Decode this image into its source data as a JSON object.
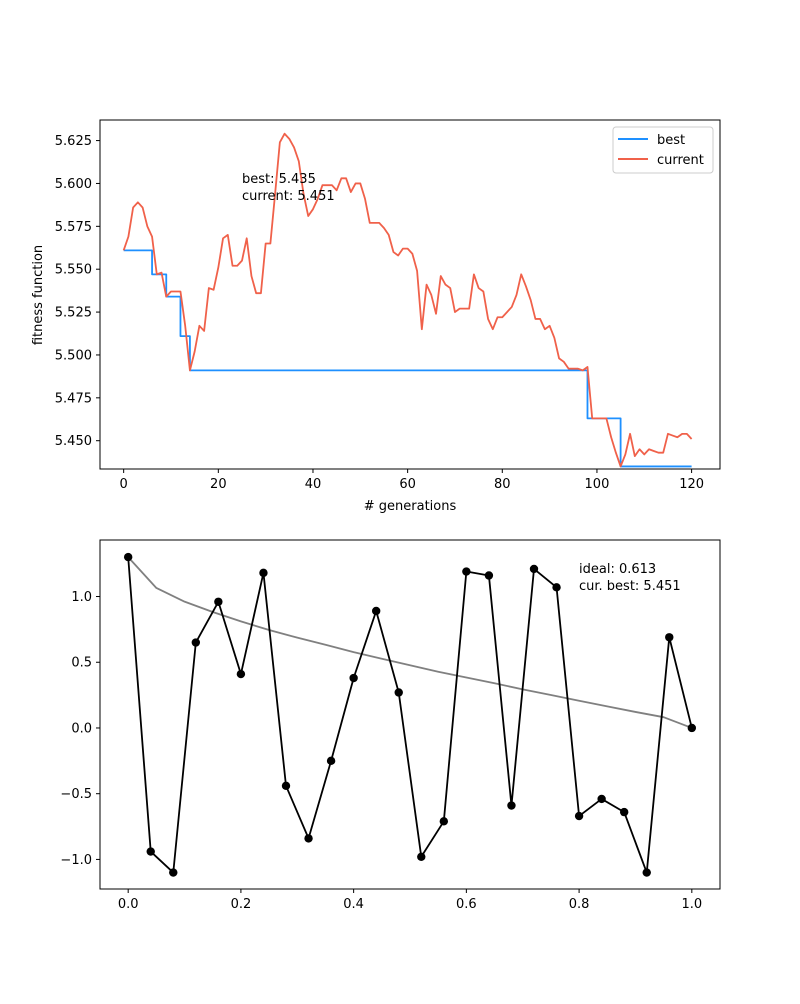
{
  "chart_data": [
    {
      "type": "line",
      "title": "",
      "xlabel": "# generations",
      "ylabel": "fitness function",
      "xlim": [
        -5,
        126
      ],
      "ylim": [
        5.4335,
        5.637
      ],
      "xticks": [
        0,
        20,
        40,
        60,
        80,
        100,
        120
      ],
      "xtick_labels": [
        "0",
        "20",
        "40",
        "60",
        "80",
        "100",
        "120"
      ],
      "yticks": [
        5.45,
        5.475,
        5.5,
        5.525,
        5.55,
        5.575,
        5.6,
        5.625
      ],
      "ytick_labels": [
        "5.450",
        "5.475",
        "5.500",
        "5.525",
        "5.550",
        "5.575",
        "5.600",
        "5.625"
      ],
      "legend_position": "top-right",
      "grid": false,
      "annotation": [
        "best: 5.435",
        "current: 5.451"
      ],
      "series": [
        {
          "name": "best",
          "color": "#1e90ff",
          "x": [
            0,
            6,
            6,
            9,
            9,
            12,
            12,
            14,
            14,
            98,
            98,
            105,
            105,
            120
          ],
          "values": [
            5.561,
            5.561,
            5.547,
            5.547,
            5.534,
            5.534,
            5.511,
            5.511,
            5.491,
            5.491,
            5.463,
            5.463,
            5.435,
            5.435
          ]
        },
        {
          "name": "current",
          "color": "#f0614a",
          "x": [
            0,
            1,
            2,
            3,
            4,
            5,
            6,
            7,
            8,
            9,
            10,
            11,
            12,
            13,
            14,
            15,
            16,
            17,
            18,
            19,
            20,
            21,
            22,
            23,
            24,
            25,
            26,
            27,
            28,
            29,
            30,
            31,
            32,
            33,
            34,
            35,
            36,
            37,
            38,
            39,
            40,
            41,
            42,
            43,
            44,
            45,
            46,
            47,
            48,
            49,
            50,
            51,
            52,
            53,
            54,
            55,
            56,
            57,
            58,
            59,
            60,
            61,
            62,
            63,
            64,
            65,
            66,
            67,
            68,
            69,
            70,
            71,
            72,
            73,
            74,
            75,
            76,
            77,
            78,
            79,
            80,
            81,
            82,
            83,
            84,
            85,
            86,
            87,
            88,
            89,
            90,
            91,
            92,
            93,
            94,
            95,
            96,
            97,
            98,
            99,
            100,
            101,
            102,
            103,
            104,
            105,
            106,
            107,
            108,
            109,
            110,
            111,
            112,
            113,
            114,
            115,
            116,
            117,
            118,
            119,
            120
          ],
          "values": [
            5.561,
            5.569,
            5.586,
            5.589,
            5.586,
            5.575,
            5.569,
            5.547,
            5.548,
            5.534,
            5.537,
            5.537,
            5.537,
            5.517,
            5.491,
            5.502,
            5.517,
            5.514,
            5.539,
            5.538,
            5.551,
            5.568,
            5.57,
            5.552,
            5.552,
            5.555,
            5.568,
            5.546,
            5.536,
            5.536,
            5.565,
            5.565,
            5.594,
            5.624,
            5.629,
            5.626,
            5.621,
            5.613,
            5.594,
            5.581,
            5.585,
            5.591,
            5.599,
            5.599,
            5.599,
            5.596,
            5.603,
            5.603,
            5.595,
            5.6,
            5.6,
            5.591,
            5.577,
            5.577,
            5.577,
            5.574,
            5.57,
            5.56,
            5.558,
            5.562,
            5.562,
            5.559,
            5.549,
            5.515,
            5.541,
            5.535,
            5.524,
            5.546,
            5.541,
            5.539,
            5.525,
            5.527,
            5.527,
            5.527,
            5.547,
            5.539,
            5.537,
            5.521,
            5.515,
            5.522,
            5.522,
            5.525,
            5.528,
            5.535,
            5.547,
            5.54,
            5.532,
            5.521,
            5.521,
            5.515,
            5.517,
            5.51,
            5.498,
            5.496,
            5.492,
            5.492,
            5.492,
            5.491,
            5.493,
            5.463,
            5.463,
            5.463,
            5.463,
            5.452,
            5.443,
            5.435,
            5.442,
            5.454,
            5.441,
            5.445,
            5.442,
            5.445,
            5.444,
            5.443,
            5.443,
            5.454,
            5.453,
            5.452,
            5.454,
            5.454,
            5.451
          ]
        }
      ]
    },
    {
      "type": "line",
      "title": "",
      "xlabel": "",
      "ylabel": "",
      "xlim": [
        -0.05,
        1.05
      ],
      "ylim": [
        -1.225,
        1.43
      ],
      "xticks": [
        0.0,
        0.2,
        0.4,
        0.6,
        0.8,
        1.0
      ],
      "xtick_labels": [
        "0.0",
        "0.2",
        "0.4",
        "0.6",
        "0.8",
        "1.0"
      ],
      "yticks": [
        -1.0,
        -0.5,
        0.0,
        0.5,
        1.0
      ],
      "ytick_labels": [
        "−1.0",
        "−0.5",
        "0.0",
        "0.5",
        "1.0"
      ],
      "grid": false,
      "annotation": [
        "ideal: 0.613",
        "cur. best: 5.451"
      ],
      "series": [
        {
          "color": "#808080",
          "x": [
            0.0,
            0.05,
            0.1,
            0.15,
            0.2,
            0.25,
            0.3,
            0.35,
            0.4,
            0.45,
            0.5,
            0.55,
            0.6,
            0.65,
            0.7,
            0.75,
            0.8,
            0.85,
            0.9,
            0.95,
            1.0
          ],
          "values": [
            1.3,
            1.065,
            0.961,
            0.882,
            0.811,
            0.745,
            0.687,
            0.633,
            0.577,
            0.527,
            0.477,
            0.428,
            0.384,
            0.34,
            0.294,
            0.251,
            0.207,
            0.164,
            0.122,
            0.082,
            0.0
          ]
        },
        {
          "color": "#000000",
          "markers": true,
          "x": [
            0.0,
            0.04,
            0.08,
            0.12,
            0.16,
            0.2,
            0.24,
            0.28,
            0.32,
            0.36,
            0.4,
            0.44,
            0.48,
            0.52,
            0.56,
            0.6,
            0.64,
            0.68,
            0.72,
            0.76,
            0.8,
            0.84,
            0.88,
            0.92,
            0.96,
            1.0
          ],
          "values": [
            1.3,
            -0.94,
            -1.1,
            0.65,
            0.96,
            0.41,
            1.18,
            -0.44,
            -0.84,
            -0.25,
            0.38,
            0.89,
            0.27,
            -0.98,
            -0.71,
            1.19,
            1.16,
            -0.59,
            1.21,
            1.07,
            -0.67,
            -0.54,
            -0.64,
            -1.1,
            0.69,
            0.0
          ]
        }
      ]
    }
  ]
}
